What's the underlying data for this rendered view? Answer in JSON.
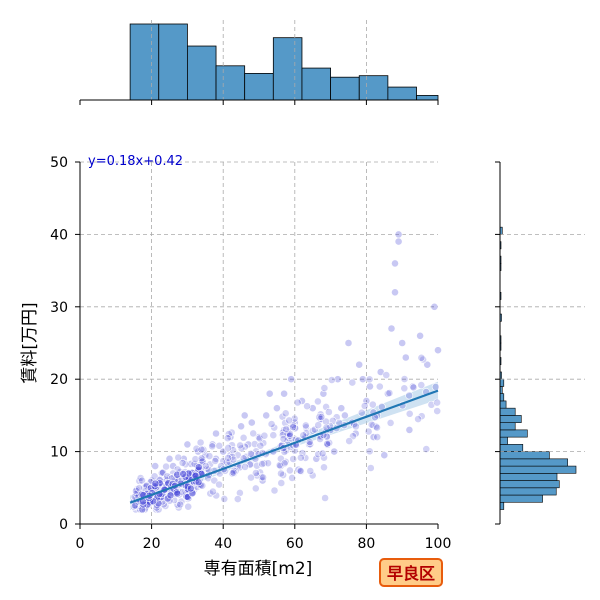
{
  "chart_data": {
    "type": "scatter",
    "xlabel": "専有面積[m2]",
    "ylabel": "賃料[万円]",
    "xlim": [
      0,
      100
    ],
    "ylim": [
      0,
      50
    ],
    "x_ticks": [
      "0",
      "20",
      "40",
      "60",
      "80",
      "100"
    ],
    "y_ticks": [
      "0",
      "10",
      "20",
      "30",
      "40",
      "50"
    ],
    "grid": true,
    "equation": "y=0.18x+0.42",
    "badge": "早良区",
    "colors": {
      "points": "#4a4ad8",
      "regression": "#1f77b4",
      "band": "#a8cbe8",
      "hist_fill": "#5599c8",
      "badge_fill": "#ffcc88",
      "badge_border": "#e85c0d",
      "badge_text": "#b30000",
      "equation": "#0000cc"
    },
    "regression": {
      "slope": 0.18,
      "intercept": 0.42,
      "x_range": [
        14,
        100
      ]
    },
    "points_sample": [
      [
        15,
        3
      ],
      [
        16,
        4.5
      ],
      [
        17,
        3.5
      ],
      [
        18,
        5
      ],
      [
        19,
        4
      ],
      [
        20,
        6
      ],
      [
        21,
        3.8
      ],
      [
        22,
        5.5
      ],
      [
        23,
        7
      ],
      [
        24,
        6.2
      ],
      [
        25,
        4.8
      ],
      [
        26,
        8
      ],
      [
        27,
        6.5
      ],
      [
        28,
        7.2
      ],
      [
        29,
        9
      ],
      [
        30,
        5.5
      ],
      [
        31,
        8.3
      ],
      [
        32,
        7
      ],
      [
        33,
        10
      ],
      [
        34,
        8.8
      ],
      [
        35,
        9.5
      ],
      [
        36,
        6.8
      ],
      [
        37,
        11
      ],
      [
        38,
        9
      ],
      [
        40,
        10
      ],
      [
        42,
        12
      ],
      [
        44,
        8
      ],
      [
        45,
        13.5
      ],
      [
        47,
        11
      ],
      [
        48,
        14
      ],
      [
        50,
        12
      ],
      [
        52,
        15
      ],
      [
        54,
        10
      ],
      [
        55,
        16
      ],
      [
        57,
        13
      ],
      [
        58,
        11.5
      ],
      [
        60,
        14
      ],
      [
        62,
        17
      ],
      [
        63,
        12
      ],
      [
        65,
        16
      ],
      [
        66,
        9
      ],
      [
        68,
        18
      ],
      [
        70,
        13
      ],
      [
        72,
        20
      ],
      [
        74,
        15
      ],
      [
        75,
        25
      ],
      [
        76,
        14
      ],
      [
        78,
        22
      ],
      [
        80,
        17
      ],
      [
        81,
        19
      ],
      [
        82,
        12
      ],
      [
        84,
        21
      ],
      [
        85,
        9.5
      ],
      [
        86,
        18
      ],
      [
        87,
        27
      ],
      [
        88,
        32
      ],
      [
        88,
        36
      ],
      [
        89,
        40
      ],
      [
        89,
        39
      ],
      [
        90,
        25
      ],
      [
        91,
        23
      ],
      [
        92,
        13
      ],
      [
        93,
        19
      ],
      [
        95,
        26
      ],
      [
        97,
        22
      ],
      [
        99,
        30
      ],
      [
        100,
        24
      ],
      [
        43,
        7
      ],
      [
        49,
        9
      ],
      [
        56,
        8
      ],
      [
        61,
        7.5
      ],
      [
        64,
        11
      ],
      [
        67,
        14.5
      ],
      [
        71,
        10
      ],
      [
        73,
        16
      ],
      [
        77,
        12.5
      ],
      [
        79,
        20
      ],
      [
        83,
        15
      ],
      [
        46,
        15
      ],
      [
        53,
        18
      ],
      [
        59,
        20
      ],
      [
        69,
        11
      ],
      [
        21,
        8
      ],
      [
        25,
        9
      ],
      [
        30,
        11
      ],
      [
        33,
        5.5
      ],
      [
        38,
        12.5
      ],
      [
        41,
        8.5
      ],
      [
        51,
        6
      ],
      [
        57,
        18
      ]
    ],
    "top_hist": {
      "bin_edges": [
        0,
        6.9,
        13.8,
        20.7,
        27.6,
        34.5,
        41.4,
        48.3,
        55.2,
        62.1,
        69,
        75.9,
        82.8
      ],
      "bin_labels_x": [
        14,
        22,
        30,
        38,
        46,
        54,
        62,
        70,
        78,
        86,
        94,
        100
      ],
      "bins": [
        {
          "x0": 14,
          "x1": 22,
          "count": 1.0
        },
        {
          "x0": 22,
          "x1": 30,
          "count": 1.0
        },
        {
          "x0": 30,
          "x1": 38,
          "count": 0.71
        },
        {
          "x0": 38,
          "x1": 46,
          "count": 0.45
        },
        {
          "x0": 46,
          "x1": 54,
          "count": 0.35
        },
        {
          "x0": 54,
          "x1": 62,
          "count": 0.82
        },
        {
          "x0": 62,
          "x1": 70,
          "count": 0.42
        },
        {
          "x0": 70,
          "x1": 78,
          "count": 0.3
        },
        {
          "x0": 78,
          "x1": 86,
          "count": 0.32
        },
        {
          "x0": 86,
          "x1": 94,
          "count": 0.17
        },
        {
          "x0": 94,
          "x1": 100,
          "count": 0.06
        }
      ]
    },
    "right_hist": {
      "bins": [
        {
          "y0": 2,
          "y1": 3,
          "count": 0.05
        },
        {
          "y0": 3,
          "y1": 4,
          "count": 0.56
        },
        {
          "y0": 4,
          "y1": 5,
          "count": 0.74
        },
        {
          "y0": 5,
          "y1": 6,
          "count": 0.78
        },
        {
          "y0": 6,
          "y1": 7,
          "count": 0.75
        },
        {
          "y0": 7,
          "y1": 8,
          "count": 1.0
        },
        {
          "y0": 8,
          "y1": 9,
          "count": 0.89
        },
        {
          "y0": 9,
          "y1": 10,
          "count": 0.65
        },
        {
          "y0": 10,
          "y1": 11,
          "count": 0.3
        },
        {
          "y0": 11,
          "y1": 12,
          "count": 0.1
        },
        {
          "y0": 12,
          "y1": 13,
          "count": 0.36
        },
        {
          "y0": 13,
          "y1": 14,
          "count": 0.2
        },
        {
          "y0": 14,
          "y1": 15,
          "count": 0.28
        },
        {
          "y0": 15,
          "y1": 16,
          "count": 0.2
        },
        {
          "y0": 16,
          "y1": 17,
          "count": 0.08
        },
        {
          "y0": 17,
          "y1": 18,
          "count": 0.05
        },
        {
          "y0": 18,
          "y1": 19,
          "count": 0.03
        },
        {
          "y0": 19,
          "y1": 20,
          "count": 0.05
        },
        {
          "y0": 20,
          "y1": 21,
          "count": 0.02
        },
        {
          "y0": 22,
          "y1": 23,
          "count": 0.01
        },
        {
          "y0": 24,
          "y1": 25,
          "count": 0.01
        },
        {
          "y0": 25,
          "y1": 26,
          "count": 0.01
        },
        {
          "y0": 28,
          "y1": 29,
          "count": 0.02
        },
        {
          "y0": 31,
          "y1": 32,
          "count": 0.01
        },
        {
          "y0": 35,
          "y1": 36,
          "count": 0.01
        },
        {
          "y0": 36,
          "y1": 37,
          "count": 0.01
        },
        {
          "y0": 38,
          "y1": 39,
          "count": 0.01
        },
        {
          "y0": 40,
          "y1": 41,
          "count": 0.03
        }
      ]
    }
  }
}
